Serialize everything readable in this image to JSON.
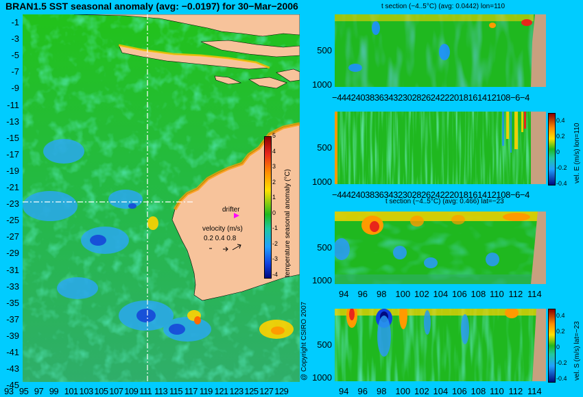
{
  "title": "BRAN1.5 SST seasonal anomaly (avg: −0.0197) for 30−Mar−2006",
  "colors": {
    "background": "#00ccff",
    "land": "#f7c39b",
    "seabed": "#c8a07f",
    "ocean_base": "#1fb81f",
    "warm": "#ff9a00",
    "hot": "#e8261a",
    "cool": "#2a9bf0",
    "cold": "#1030c8"
  },
  "map": {
    "lat_ticks": [
      "-1",
      "-3",
      "-5",
      "-7",
      "-9",
      "-11",
      "-13",
      "-15",
      "-17",
      "-19",
      "-21",
      "-23",
      "-25",
      "-27",
      "-29",
      "-31",
      "-33",
      "-35",
      "-37",
      "-39",
      "-41",
      "-43",
      "-45"
    ],
    "lon_ticks": [
      "93",
      "95",
      "97",
      "99",
      "101",
      "103",
      "105",
      "107",
      "109",
      "111",
      "113",
      "115",
      "117",
      "119",
      "121",
      "123",
      "125",
      "127",
      "129"
    ],
    "crosshair_lon": 110,
    "crosshair_lat": -23,
    "colorbar_label": "temperature seasonal anomaly (°C)",
    "colorbar_ticks": [
      "5",
      "4",
      "3",
      "2",
      "1",
      "0",
      "-1",
      "-2",
      "-3",
      "-4"
    ],
    "drifter_label": "drifter",
    "velocity_label": "velocity (m/s)",
    "velocity_scale": "0.2 0.4 0.8",
    "copyright": "@ Copyright CSIRO 2007"
  },
  "chart_data": [
    {
      "type": "heatmap",
      "title": "t section (−4..5°C) (avg: 0.0442) lon=110",
      "x_tick_labels": "−4442403836343230282624222018161412108−6−4",
      "y_ticks": [
        "500",
        "1000"
      ],
      "colorbar": false
    },
    {
      "type": "heatmap",
      "title": "",
      "x_tick_labels": "−4442403836343230282624222018161412108−6−4",
      "y_ticks": [
        "500",
        "1000"
      ],
      "colorbar": true,
      "colorbar_label": "vel. E (m/s) lon=110",
      "colorbar_ticks": [
        "0.4",
        "0.2",
        "0",
        "-0.2",
        "-0.4"
      ]
    },
    {
      "type": "heatmap",
      "title": "t section (−4..5°C) (avg: 0.466) lat=−23",
      "x_ticks": [
        "94",
        "96",
        "98",
        "100",
        "102",
        "104",
        "106",
        "108",
        "110",
        "112",
        "114"
      ],
      "y_ticks": [
        "500",
        "1000"
      ],
      "colorbar": false
    },
    {
      "type": "heatmap",
      "title": "",
      "x_ticks": [
        "94",
        "96",
        "98",
        "100",
        "102",
        "104",
        "106",
        "108",
        "110",
        "112",
        "114"
      ],
      "y_ticks": [
        "500",
        "1000"
      ],
      "colorbar": true,
      "colorbar_label": "vel. S (m/s) lat=−23",
      "colorbar_ticks": [
        "0.4",
        "0.2",
        "0",
        "-0.2",
        "-0.4"
      ]
    }
  ]
}
